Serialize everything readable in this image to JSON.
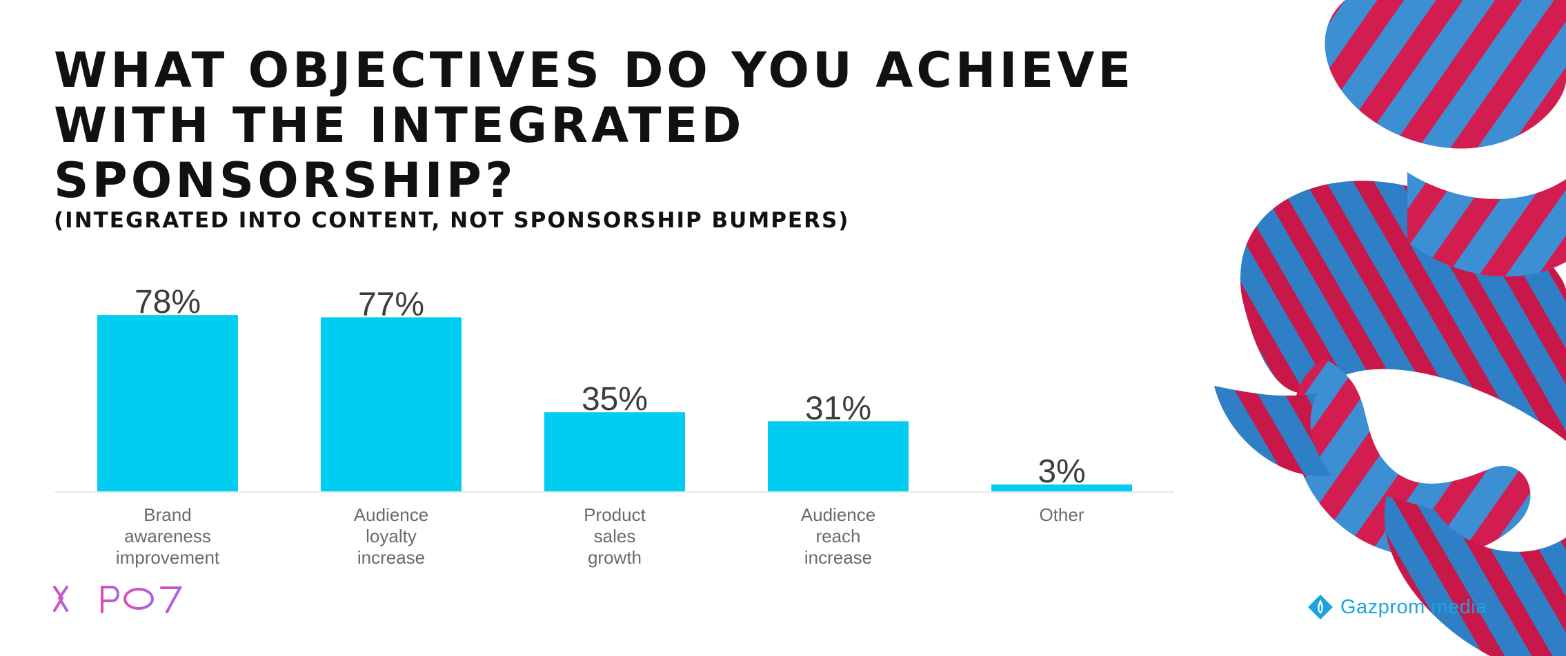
{
  "header": {
    "title": "WHAT OBJECTIVES DO YOU ACHIEVE WITH THE INTEGRATED SPONSORSHIP?",
    "subtitle": "(INTEGRATED INTO CONTENT, NOT SPONSORSHIP BUMPERS)"
  },
  "chart_data": {
    "type": "bar",
    "categories": [
      [
        "Brand",
        "awareness",
        "improvement"
      ],
      [
        "Audience",
        "loyalty",
        "increase"
      ],
      [
        "Product",
        "sales",
        "growth"
      ],
      [
        "Audience",
        "reach",
        "increase"
      ],
      [
        "Other"
      ]
    ],
    "values": [
      78,
      77,
      35,
      31,
      3
    ],
    "value_labels": [
      "78%",
      "77%",
      "35%",
      "31%",
      "3%"
    ],
    "bar_color": "#00cdef",
    "ylim": [
      0,
      100
    ],
    "grid": false,
    "legend": "none"
  },
  "footer": {
    "left_logo": "ЖНРФ7",
    "right_logo_text": "Gazprom media",
    "left_logo_color": "#c35ad3",
    "right_logo_color": "#1aa3dd"
  }
}
